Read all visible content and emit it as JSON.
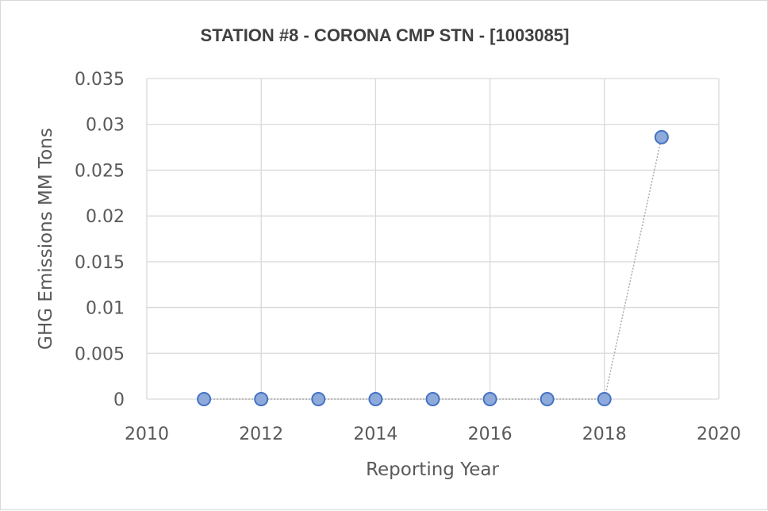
{
  "chart_data": {
    "type": "scatter",
    "title": "STATION #8 - CORONA CMP STN - [1003085]",
    "xlabel": "Reporting Year",
    "ylabel": "GHG Emissions MM Tons",
    "xlim": [
      2010,
      2020
    ],
    "ylim": [
      0,
      0.035
    ],
    "x_ticks": [
      "2010",
      "2012",
      "2014",
      "2016",
      "2018",
      "2020"
    ],
    "y_ticks": [
      "0",
      "0.005",
      "0.01",
      "0.015",
      "0.02",
      "0.025",
      "0.03",
      "0.035"
    ],
    "x_tick_values": [
      2010,
      2012,
      2014,
      2016,
      2018,
      2020
    ],
    "y_tick_values": [
      0,
      0.005,
      0.01,
      0.015,
      0.02,
      0.025,
      0.03,
      0.035
    ],
    "grid": true,
    "series": [
      {
        "x": [
          2011,
          2012,
          2013,
          2014,
          2015,
          2016,
          2017,
          2018,
          2019
        ],
        "y": [
          0,
          0,
          0,
          0,
          0,
          0,
          0,
          0,
          0.0286
        ],
        "connected": true,
        "marker_color": "#8eaadb",
        "edge_color": "#4472c4",
        "line_color": "#a6a6a6"
      }
    ]
  }
}
